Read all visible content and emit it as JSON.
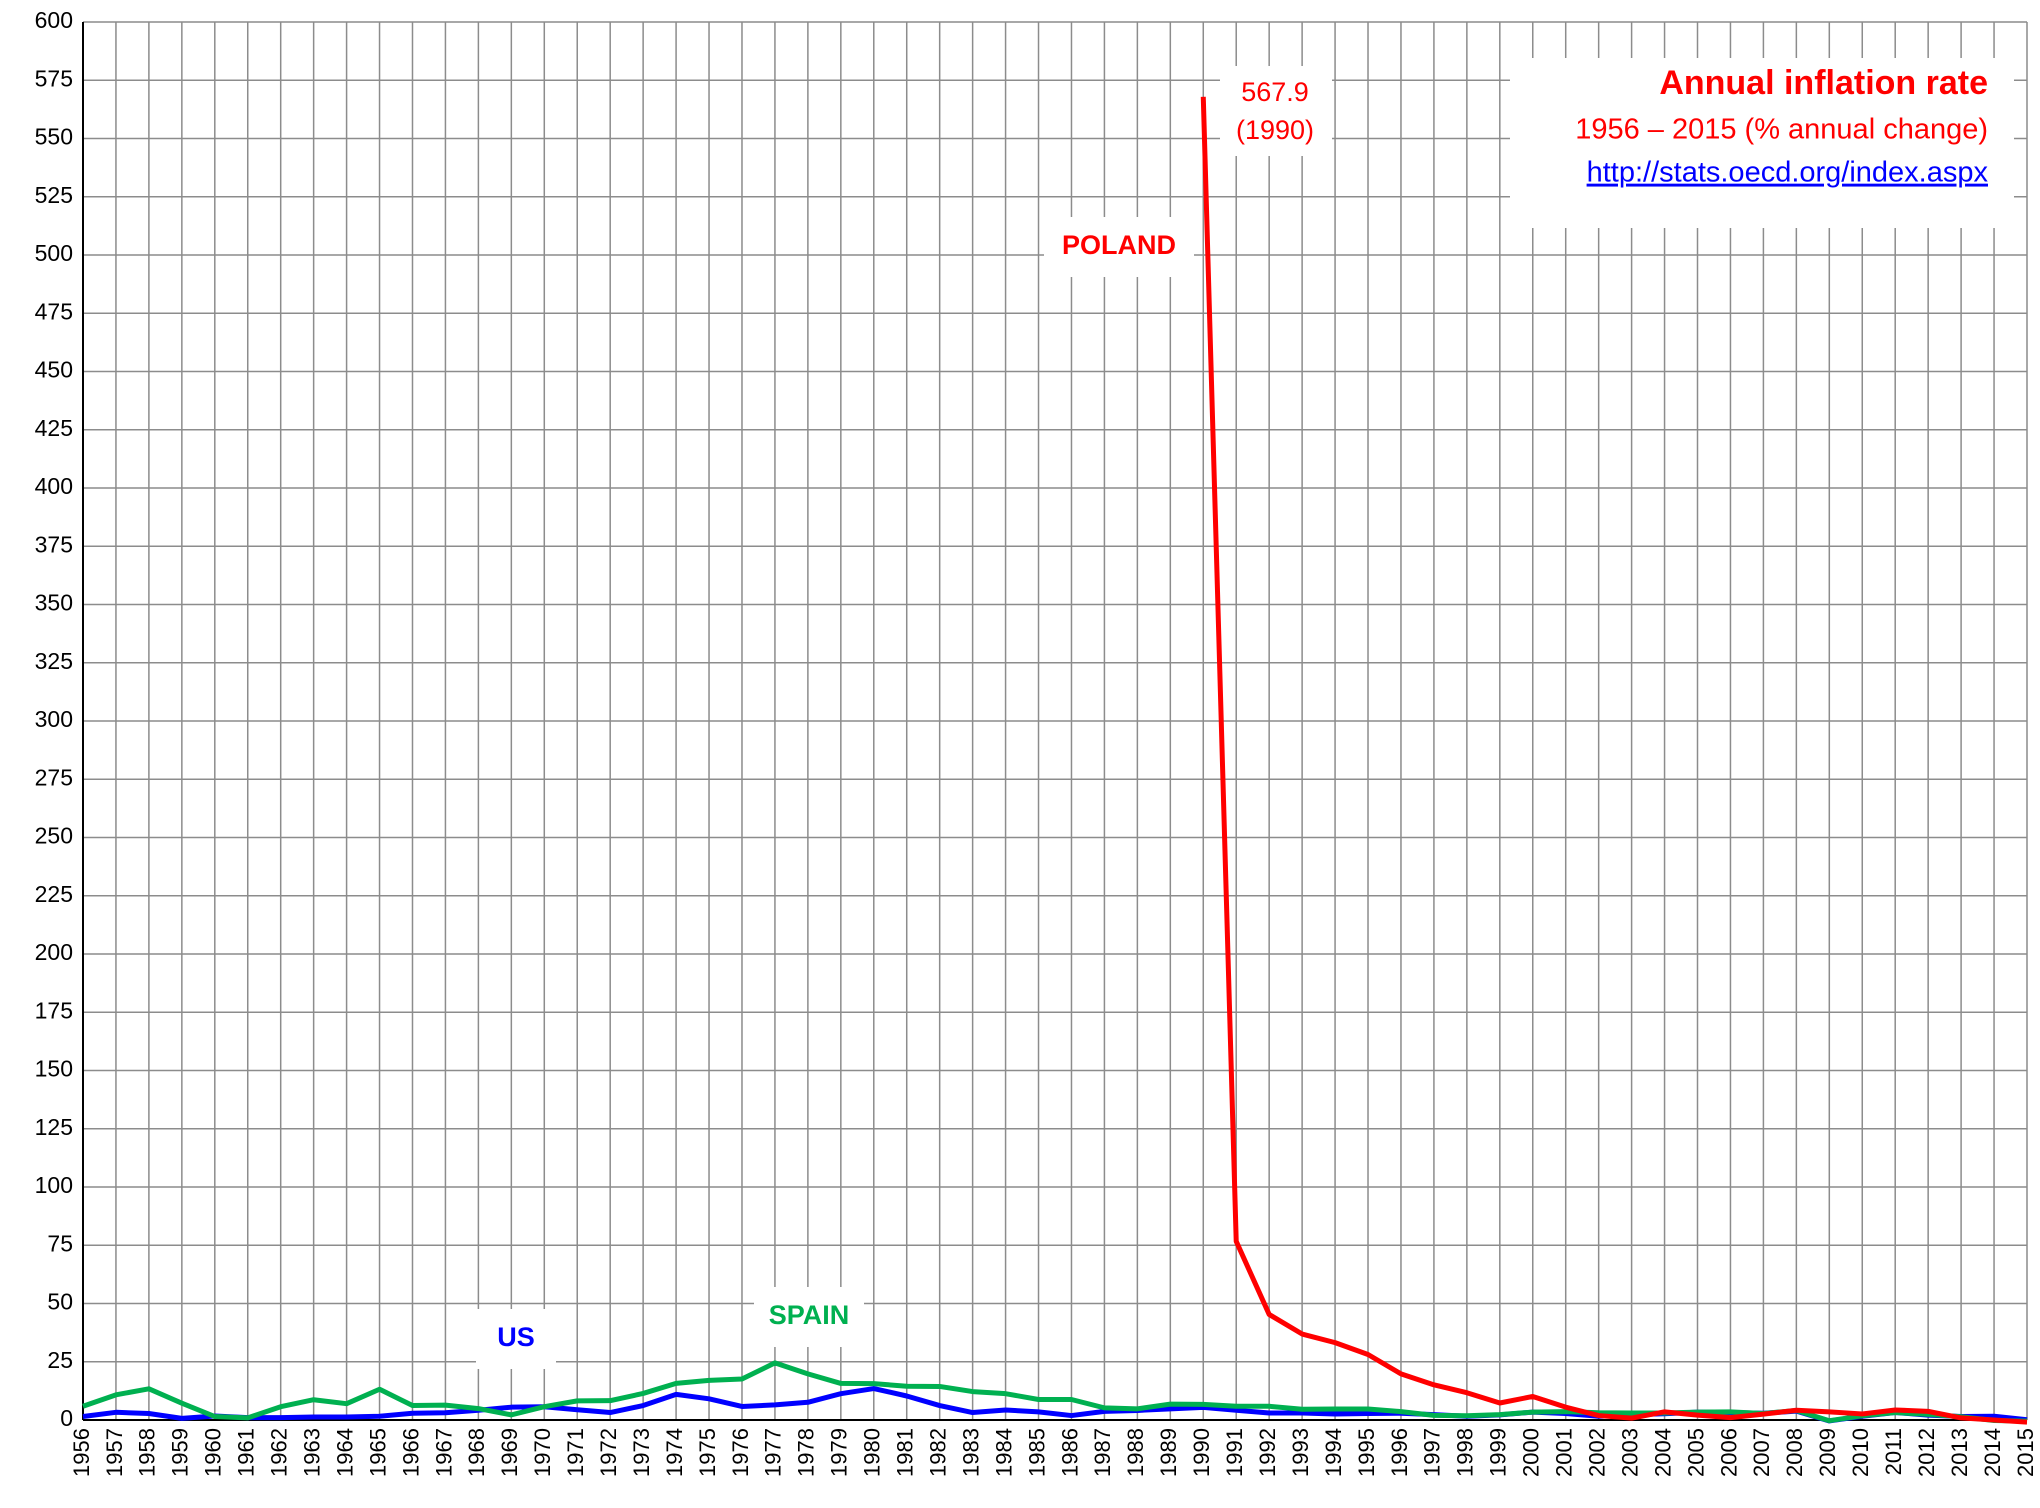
{
  "chart_data": {
    "type": "line",
    "title": "Annual inflation rate",
    "subtitle": "1956 – 2015 (% annual change)",
    "source": "http://stats.oecd.org/index.aspx",
    "annotations": [
      "567.9",
      "(1990)"
    ],
    "categories": [
      "1956",
      "1957",
      "1958",
      "1959",
      "1960",
      "1961",
      "1962",
      "1963",
      "1964",
      "1965",
      "1966",
      "1967",
      "1968",
      "1969",
      "1970",
      "1971",
      "1972",
      "1973",
      "1974",
      "1975",
      "1976",
      "1977",
      "1978",
      "1979",
      "1980",
      "1981",
      "1982",
      "1983",
      "1984",
      "1985",
      "1986",
      "1987",
      "1988",
      "1989",
      "1990",
      "1991",
      "1992",
      "1993",
      "1994",
      "1995",
      "1996",
      "1997",
      "1998",
      "1999",
      "2000",
      "2001",
      "2002",
      "2003",
      "2004",
      "2005",
      "2006",
      "2007",
      "2008",
      "2009",
      "2010",
      "2011",
      "2012",
      "2013",
      "2014",
      "2015"
    ],
    "series": [
      {
        "name": "POLAND",
        "color": "#ff0000",
        "values": [
          null,
          null,
          null,
          null,
          null,
          null,
          null,
          null,
          null,
          null,
          null,
          null,
          null,
          null,
          null,
          null,
          null,
          null,
          null,
          null,
          null,
          null,
          null,
          null,
          null,
          null,
          null,
          null,
          null,
          null,
          null,
          null,
          null,
          null,
          567.9,
          76.7,
          45.3,
          36.9,
          33.2,
          28.1,
          19.8,
          15.1,
          11.7,
          7.3,
          10.1,
          5.5,
          1.9,
          0.8,
          3.5,
          2.1,
          1.0,
          2.5,
          4.2,
          3.5,
          2.6,
          4.3,
          3.7,
          0.9,
          0.0,
          -0.9
        ]
      },
      {
        "name": "US",
        "color": "#0000ff",
        "values": [
          1.5,
          3.3,
          2.8,
          0.7,
          1.7,
          1.0,
          1.0,
          1.3,
          1.3,
          1.6,
          2.9,
          3.1,
          4.2,
          5.5,
          5.7,
          4.4,
          3.2,
          6.2,
          11.0,
          9.1,
          5.8,
          6.5,
          7.6,
          11.3,
          13.5,
          10.3,
          6.2,
          3.2,
          4.3,
          3.5,
          1.9,
          3.7,
          4.1,
          4.8,
          5.4,
          4.2,
          3.0,
          3.0,
          2.6,
          2.8,
          2.9,
          2.3,
          1.6,
          2.2,
          3.4,
          2.8,
          1.6,
          2.3,
          2.7,
          3.4,
          3.2,
          2.9,
          3.8,
          -0.4,
          1.6,
          3.2,
          2.1,
          1.5,
          1.6,
          0.1
        ]
      },
      {
        "name": "SPAIN",
        "color": "#00b050",
        "values": [
          5.9,
          10.8,
          13.4,
          7.2,
          1.5,
          0.9,
          5.7,
          8.7,
          7.0,
          13.2,
          6.2,
          6.4,
          4.9,
          2.2,
          5.7,
          8.2,
          8.3,
          11.4,
          15.7,
          17.0,
          17.6,
          24.5,
          19.8,
          15.7,
          15.6,
          14.5,
          14.4,
          12.2,
          11.3,
          8.8,
          8.8,
          5.2,
          4.8,
          6.8,
          6.7,
          5.9,
          5.9,
          4.6,
          4.7,
          4.7,
          3.6,
          2.0,
          1.8,
          2.3,
          3.4,
          3.6,
          3.1,
          3.0,
          3.0,
          3.4,
          3.5,
          2.8,
          4.1,
          -0.3,
          1.8,
          3.2,
          2.4,
          1.4,
          -0.2,
          -0.5
        ]
      }
    ],
    "ylim": [
      0,
      600
    ],
    "yticks": [
      0,
      25,
      50,
      75,
      100,
      125,
      150,
      175,
      200,
      225,
      250,
      275,
      300,
      325,
      350,
      375,
      400,
      425,
      450,
      475,
      500,
      525,
      550,
      575,
      600
    ],
    "grid": true
  }
}
